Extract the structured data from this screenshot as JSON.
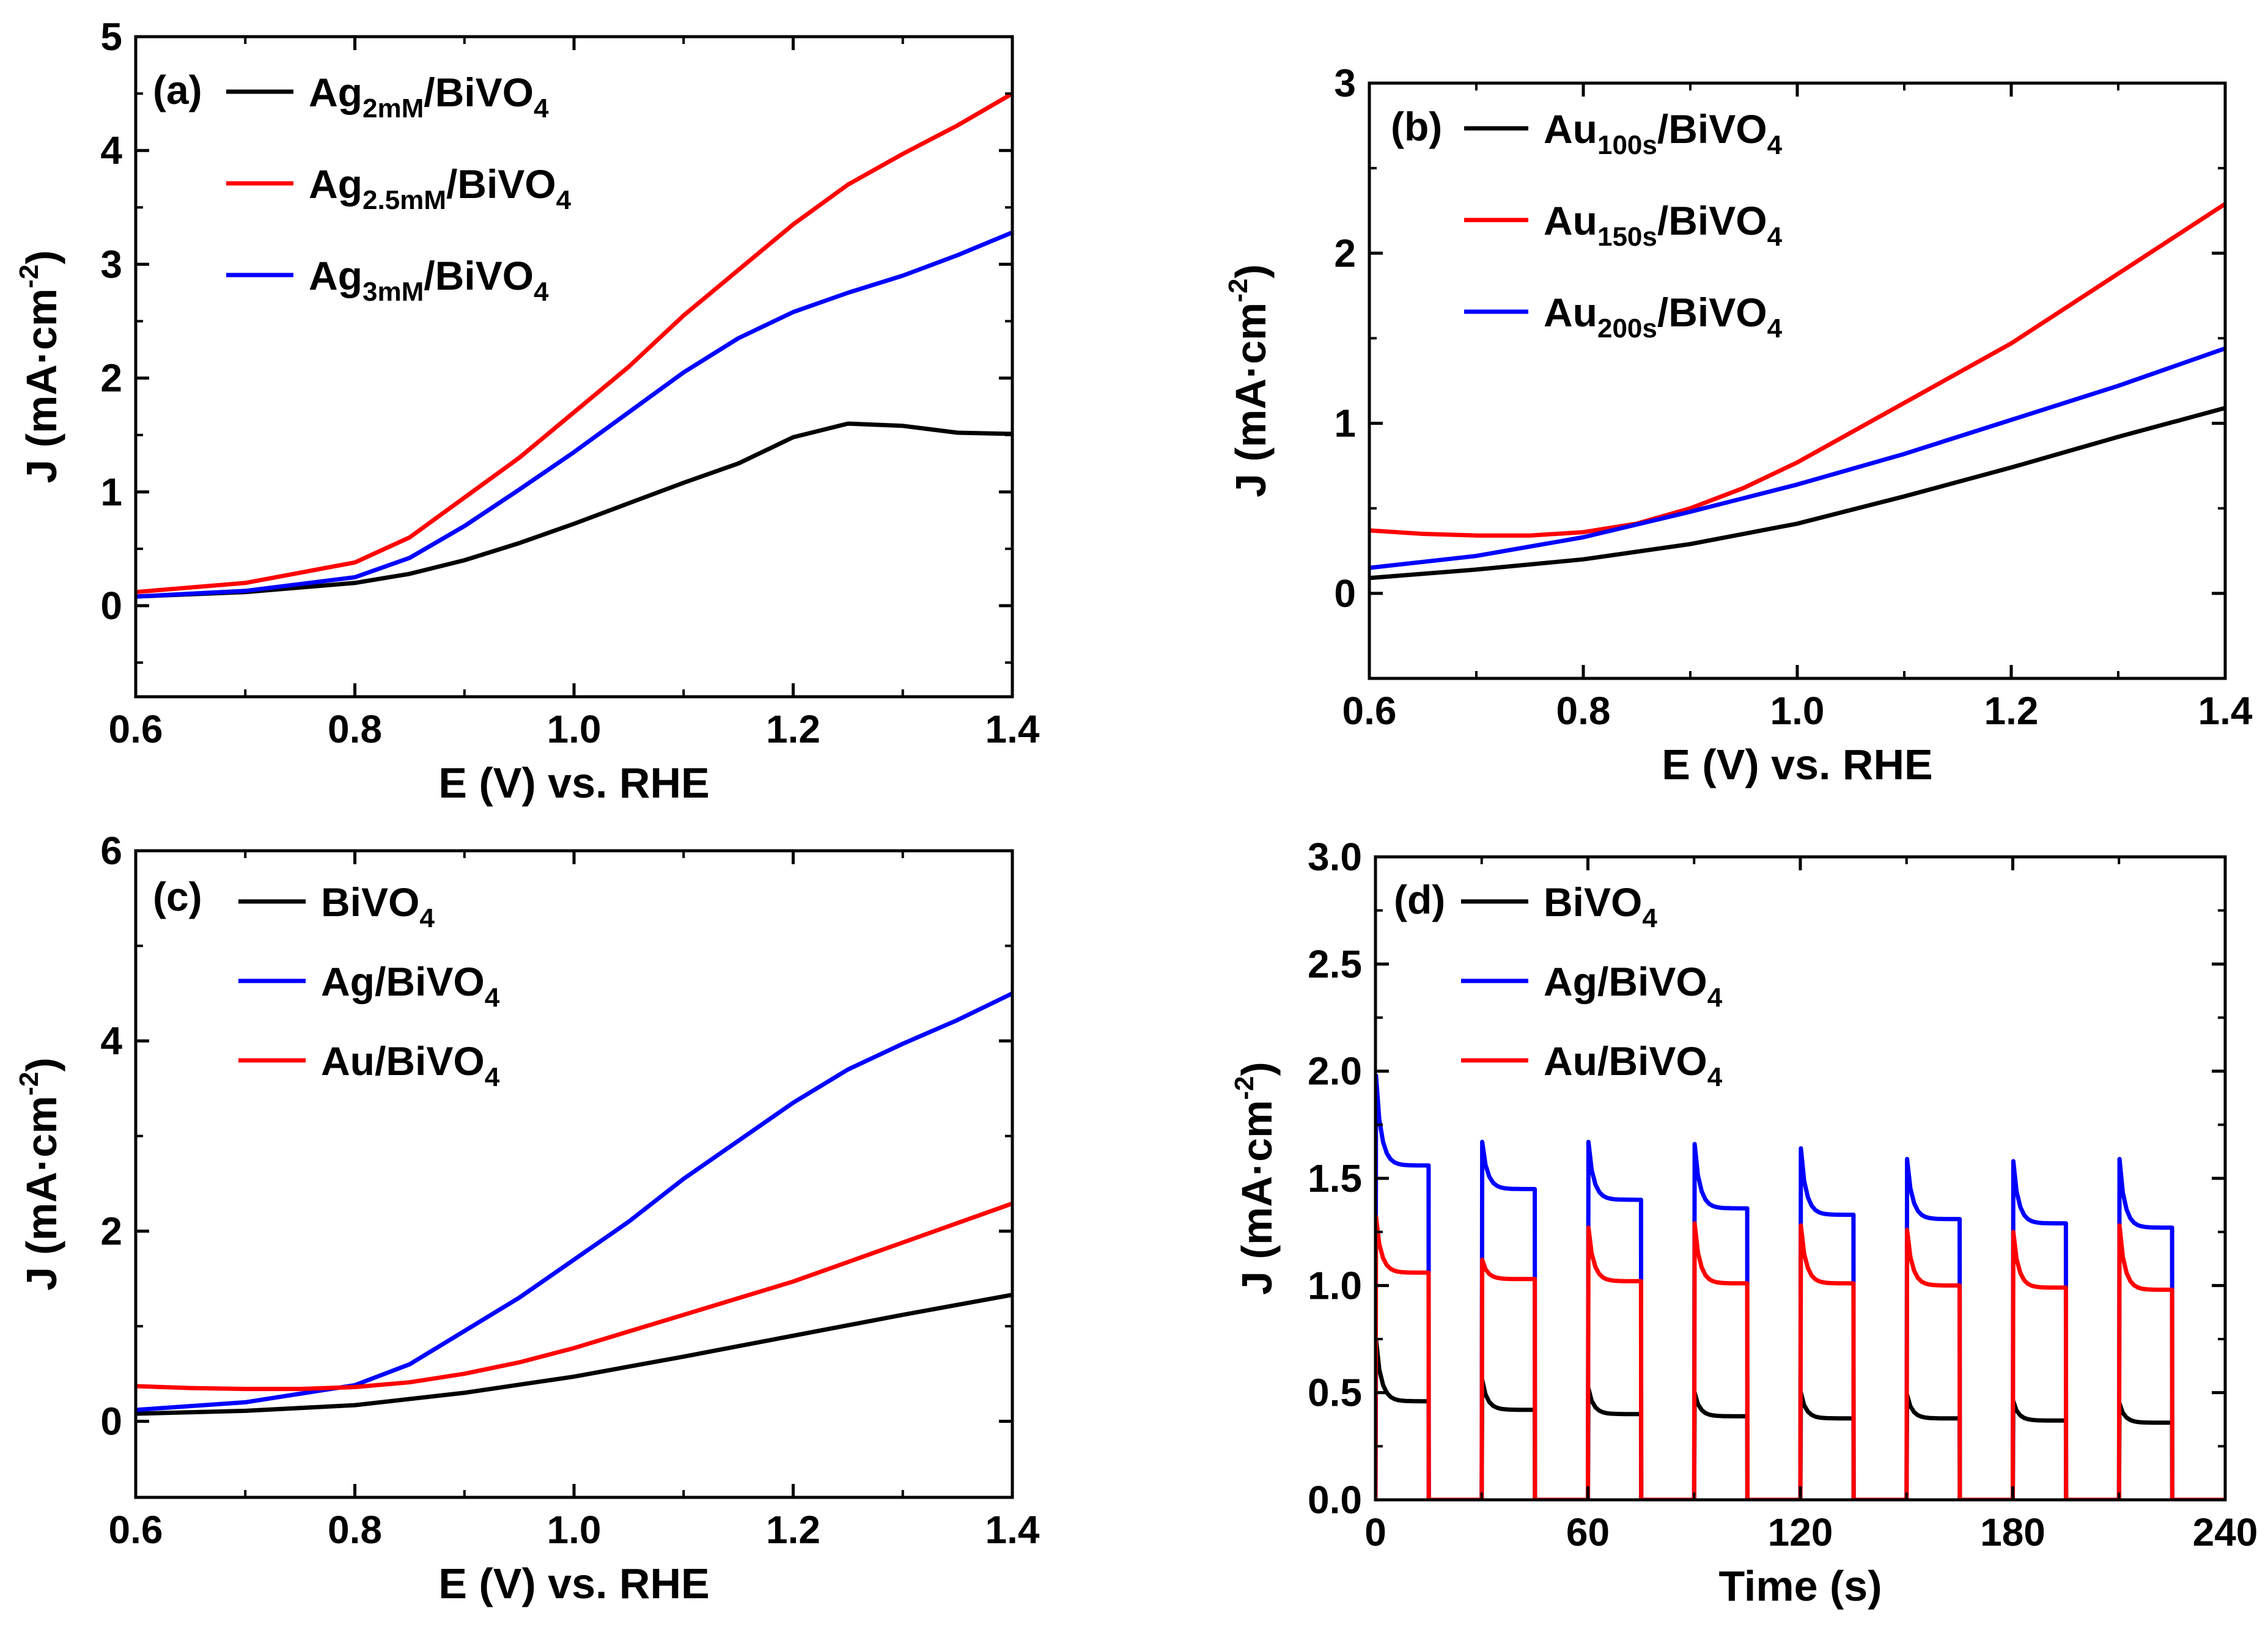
{
  "colors": {
    "black": "#000000",
    "red": "#ff0000",
    "blue": "#0000ff"
  },
  "chart_data": [
    {
      "id": "a",
      "type": "line",
      "panel_label": "(a)",
      "xlabel": "E (V) vs. RHE",
      "ylabel": "J (mA·cm",
      "ylabel_sup": "-2",
      "ylabel_close": ")",
      "xlim": [
        0.6,
        1.4
      ],
      "ylim": [
        -0.8,
        5
      ],
      "xticks": [
        0.6,
        0.8,
        1.0,
        1.2,
        1.4
      ],
      "xtick_labels": [
        "0.6",
        "0.8",
        "1.0",
        "1.2",
        "1.4"
      ],
      "yticks": [
        0,
        1,
        2,
        3,
        4,
        5
      ],
      "ytick_labels": [
        "0",
        "1",
        "2",
        "3",
        "4",
        "5"
      ],
      "series": [
        {
          "name": "Ag2mM/BiVO4",
          "label_main": "Ag",
          "label_sub": "2mM",
          "label_tail": "/BiVO",
          "label_sub2": "4",
          "color": "#000000",
          "x": [
            0.6,
            0.7,
            0.8,
            0.85,
            0.9,
            0.95,
            1.0,
            1.05,
            1.1,
            1.15,
            1.2,
            1.25,
            1.3,
            1.35,
            1.4
          ],
          "y": [
            0.08,
            0.12,
            0.2,
            0.28,
            0.4,
            0.55,
            0.72,
            0.9,
            1.08,
            1.25,
            1.48,
            1.6,
            1.58,
            1.52,
            1.51
          ]
        },
        {
          "name": "Ag2.5mM/BiVO4",
          "label_main": "Ag",
          "label_sub": "2.5mM",
          "label_tail": "/BiVO",
          "label_sub2": "4",
          "color": "#ff0000",
          "x": [
            0.6,
            0.7,
            0.8,
            0.85,
            0.9,
            0.95,
            1.0,
            1.05,
            1.1,
            1.15,
            1.2,
            1.25,
            1.3,
            1.35,
            1.4
          ],
          "y": [
            0.12,
            0.2,
            0.38,
            0.6,
            0.95,
            1.3,
            1.7,
            2.1,
            2.55,
            2.95,
            3.35,
            3.7,
            3.97,
            4.22,
            4.5
          ]
        },
        {
          "name": "Ag3mM/BiVO4",
          "label_main": "Ag",
          "label_sub": "3mM",
          "label_tail": "/BiVO",
          "label_sub2": "4",
          "color": "#0000ff",
          "x": [
            0.6,
            0.7,
            0.8,
            0.85,
            0.9,
            0.95,
            1.0,
            1.05,
            1.1,
            1.15,
            1.2,
            1.25,
            1.3,
            1.35,
            1.4
          ],
          "y": [
            0.08,
            0.13,
            0.25,
            0.42,
            0.7,
            1.02,
            1.35,
            1.7,
            2.05,
            2.35,
            2.58,
            2.75,
            2.9,
            3.08,
            3.28
          ]
        }
      ]
    },
    {
      "id": "b",
      "type": "line",
      "panel_label": "(b)",
      "xlabel": "E (V) vs. RHE",
      "ylabel": "J (mA·cm",
      "ylabel_sup": "-2",
      "ylabel_close": ")",
      "xlim": [
        0.6,
        1.4
      ],
      "ylim": [
        -0.5,
        3
      ],
      "xticks": [
        0.6,
        0.8,
        1.0,
        1.2,
        1.4
      ],
      "xtick_labels": [
        "0.6",
        "0.8",
        "1.0",
        "1.2",
        "1.4"
      ],
      "yticks": [
        0,
        1,
        2,
        3
      ],
      "ytick_labels": [
        "0",
        "1",
        "2",
        "3"
      ],
      "series": [
        {
          "name": "Au100s/BiVO4",
          "label_main": "Au",
          "label_sub": "100s",
          "label_tail": "/BiVO",
          "label_sub2": "4",
          "color": "#000000",
          "x": [
            0.6,
            0.7,
            0.8,
            0.9,
            1.0,
            1.1,
            1.2,
            1.3,
            1.4
          ],
          "y": [
            0.09,
            0.14,
            0.2,
            0.29,
            0.41,
            0.57,
            0.74,
            0.92,
            1.09
          ]
        },
        {
          "name": "Au150s/BiVO4",
          "label_main": "Au",
          "label_sub": "150s",
          "label_tail": "/BiVO",
          "label_sub2": "4",
          "color": "#ff0000",
          "x": [
            0.6,
            0.65,
            0.7,
            0.75,
            0.8,
            0.85,
            0.9,
            0.95,
            1.0,
            1.1,
            1.2,
            1.3,
            1.4
          ],
          "y": [
            0.37,
            0.35,
            0.34,
            0.34,
            0.36,
            0.41,
            0.5,
            0.62,
            0.77,
            1.12,
            1.47,
            1.88,
            2.29
          ]
        },
        {
          "name": "Au200s/BiVO4",
          "label_main": "Au",
          "label_sub": "200s",
          "label_tail": "/BiVO",
          "label_sub2": "4",
          "color": "#0000ff",
          "x": [
            0.6,
            0.7,
            0.8,
            0.9,
            1.0,
            1.1,
            1.2,
            1.3,
            1.4
          ],
          "y": [
            0.15,
            0.22,
            0.33,
            0.48,
            0.64,
            0.82,
            1.02,
            1.22,
            1.44
          ]
        }
      ]
    },
    {
      "id": "c",
      "type": "line",
      "panel_label": "(c)",
      "xlabel": "E (V) vs. RHE",
      "ylabel": "J (mA·cm",
      "ylabel_sup": "-2",
      "ylabel_close": ")",
      "xlim": [
        0.6,
        1.4
      ],
      "ylim": [
        -0.8,
        6
      ],
      "xticks": [
        0.6,
        0.8,
        1.0,
        1.2,
        1.4
      ],
      "xtick_labels": [
        "0.6",
        "0.8",
        "1.0",
        "1.2",
        "1.4"
      ],
      "yticks": [
        0,
        2,
        4,
        6
      ],
      "ytick_labels": [
        "0",
        "2",
        "4",
        "6"
      ],
      "series": [
        {
          "name": "BiVO4",
          "label_main": "BiVO",
          "label_sub": "4",
          "label_tail": "",
          "label_sub2": "",
          "color": "#000000",
          "x": [
            0.6,
            0.7,
            0.8,
            0.9,
            1.0,
            1.1,
            1.2,
            1.3,
            1.4
          ],
          "y": [
            0.08,
            0.11,
            0.17,
            0.3,
            0.47,
            0.68,
            0.9,
            1.12,
            1.33
          ]
        },
        {
          "name": "Ag/BiVO4",
          "label_main": "Ag/BiVO",
          "label_sub": "4",
          "label_tail": "",
          "label_sub2": "",
          "color": "#0000ff",
          "x": [
            0.6,
            0.7,
            0.8,
            0.85,
            0.9,
            0.95,
            1.0,
            1.05,
            1.1,
            1.15,
            1.2,
            1.25,
            1.3,
            1.35,
            1.4
          ],
          "y": [
            0.12,
            0.2,
            0.38,
            0.6,
            0.95,
            1.3,
            1.7,
            2.1,
            2.55,
            2.95,
            3.35,
            3.7,
            3.97,
            4.22,
            4.5
          ]
        },
        {
          "name": "Au/BiVO4",
          "label_main": "Au/BiVO",
          "label_sub": "4",
          "label_tail": "",
          "label_sub2": "",
          "color": "#ff0000",
          "x": [
            0.6,
            0.65,
            0.7,
            0.75,
            0.8,
            0.85,
            0.9,
            0.95,
            1.0,
            1.1,
            1.2,
            1.3,
            1.4
          ],
          "y": [
            0.37,
            0.35,
            0.34,
            0.34,
            0.36,
            0.41,
            0.5,
            0.62,
            0.77,
            1.12,
            1.47,
            1.88,
            2.29
          ]
        }
      ]
    },
    {
      "id": "d",
      "type": "line",
      "subtype": "chopped",
      "panel_label": "(d)",
      "xlabel": "Time (s)",
      "ylabel": "J (mA·cm",
      "ylabel_sup": "-2",
      "ylabel_close": ")",
      "xlim": [
        0,
        240
      ],
      "ylim": [
        0,
        3
      ],
      "xticks": [
        0,
        60,
        120,
        180,
        240
      ],
      "xtick_labels": [
        "0",
        "60",
        "120",
        "180",
        "240"
      ],
      "yticks": [
        0,
        0.5,
        1.0,
        1.5,
        2.0,
        2.5,
        3.0
      ],
      "ytick_labels": [
        "0.0",
        "0.5",
        "1.0",
        "1.5",
        "2.0",
        "2.5",
        "3.0"
      ],
      "light_period_s": 30,
      "light_on_duration_s": 15,
      "series": [
        {
          "name": "BiVO4",
          "label_main": "BiVO",
          "label_sub": "4",
          "label_tail": "",
          "label_sub2": "",
          "color": "#000000",
          "on_start": [
            0,
            30,
            60,
            90,
            120,
            150,
            180,
            210
          ],
          "spike": [
            0.75,
            0.56,
            0.52,
            0.5,
            0.5,
            0.49,
            0.46,
            0.45
          ],
          "steady": [
            0.46,
            0.42,
            0.4,
            0.39,
            0.38,
            0.38,
            0.37,
            0.36
          ]
        },
        {
          "name": "Ag/BiVO4",
          "label_main": "Ag/BiVO",
          "label_sub": "4",
          "label_tail": "",
          "label_sub2": "",
          "color": "#0000ff",
          "on_start": [
            0,
            30,
            60,
            90,
            120,
            150,
            180,
            210
          ],
          "spike": [
            1.98,
            1.67,
            1.67,
            1.66,
            1.64,
            1.59,
            1.58,
            1.59
          ],
          "steady": [
            1.56,
            1.45,
            1.4,
            1.36,
            1.33,
            1.31,
            1.29,
            1.27
          ]
        },
        {
          "name": "Au/BiVO4",
          "label_main": "Au/BiVO",
          "label_sub": "4",
          "label_tail": "",
          "label_sub2": "",
          "color": "#ff0000",
          "on_start": [
            0,
            30,
            60,
            90,
            120,
            150,
            180,
            210
          ],
          "spike": [
            1.32,
            1.12,
            1.27,
            1.29,
            1.28,
            1.26,
            1.25,
            1.28
          ],
          "steady": [
            1.06,
            1.03,
            1.02,
            1.01,
            1.01,
            1.0,
            0.99,
            0.98
          ]
        }
      ]
    }
  ]
}
